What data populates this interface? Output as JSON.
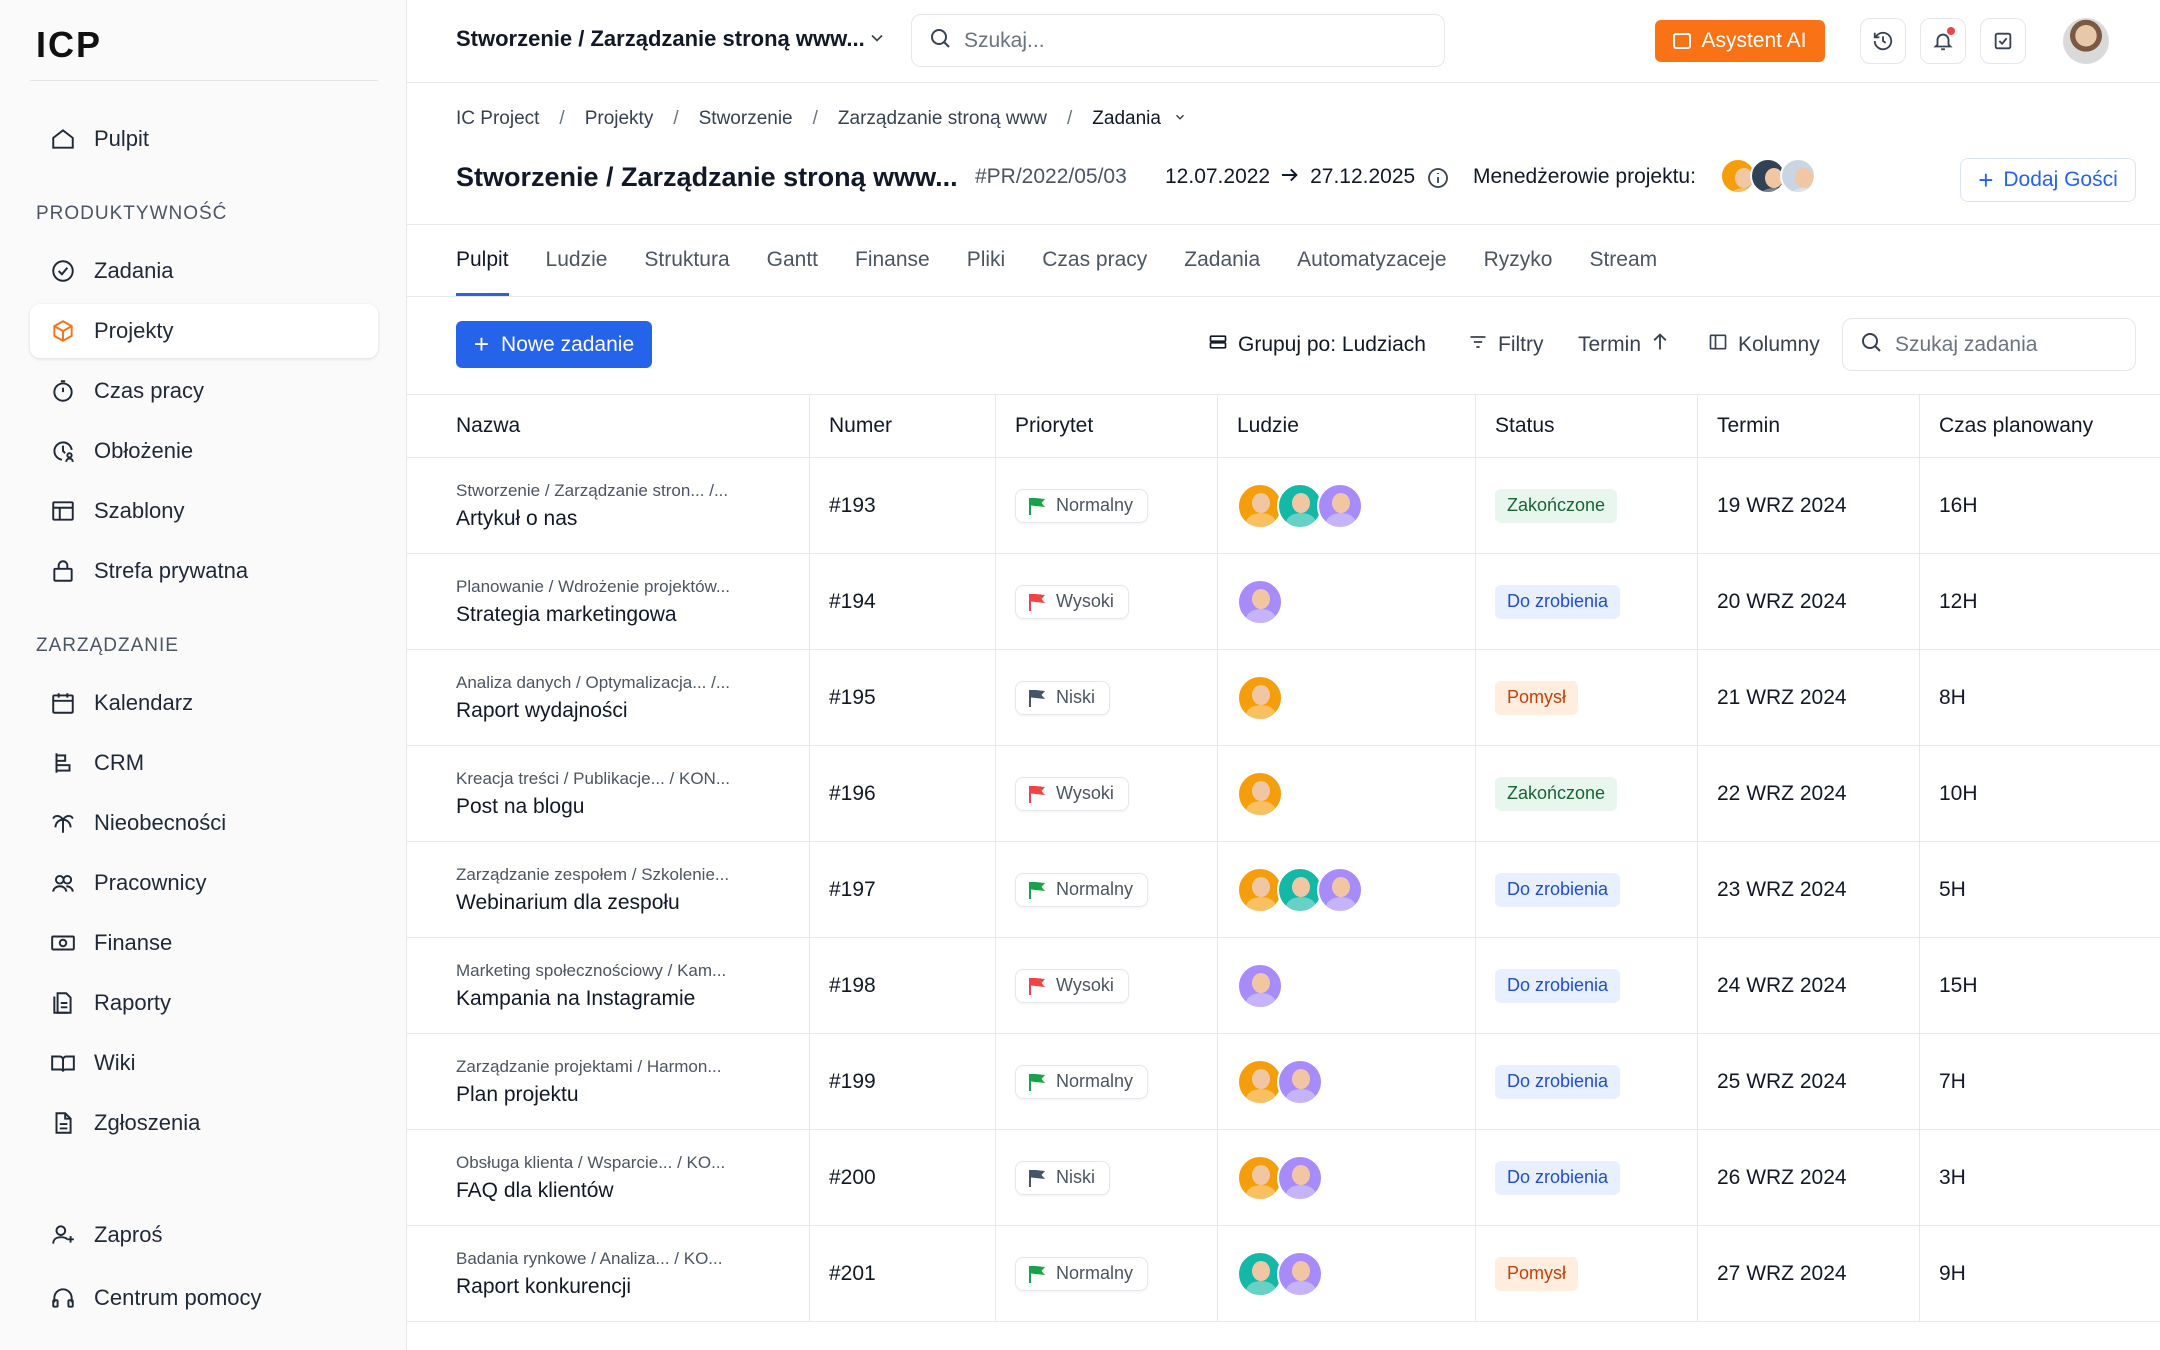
{
  "app": {
    "logo": "ICP"
  },
  "sidebar": {
    "top": [
      {
        "label": "Pulpit",
        "icon": "home-icon"
      }
    ],
    "sections": [
      {
        "title": "PRODUKTYWNOŚĆ",
        "items": [
          {
            "label": "Zadania",
            "icon": "check-circle-icon"
          },
          {
            "label": "Projekty",
            "icon": "cube-icon",
            "active": true
          },
          {
            "label": "Czas pracy",
            "icon": "stopwatch-icon"
          },
          {
            "label": "Obłożenie",
            "icon": "clock-user-icon"
          },
          {
            "label": "Szablony",
            "icon": "template-icon"
          },
          {
            "label": "Strefa prywatna",
            "icon": "lock-icon"
          }
        ]
      },
      {
        "title": "ZARZĄDZANIE",
        "items": [
          {
            "label": "Kalendarz",
            "icon": "calendar-icon"
          },
          {
            "label": "CRM",
            "icon": "crm-icon"
          },
          {
            "label": "Nieobecności",
            "icon": "palm-icon"
          },
          {
            "label": "Pracownicy",
            "icon": "users-icon"
          },
          {
            "label": "Finanse",
            "icon": "money-icon"
          },
          {
            "label": "Raporty",
            "icon": "report-icon"
          },
          {
            "label": "Wiki",
            "icon": "book-icon"
          },
          {
            "label": "Zgłoszenia",
            "icon": "document-icon"
          }
        ]
      }
    ],
    "bottom": [
      {
        "label": "Zaproś",
        "icon": "user-plus-icon"
      },
      {
        "label": "Centrum pomocy",
        "icon": "headphones-icon"
      }
    ]
  },
  "topbar": {
    "project_select": "Stworzenie / Zarządzanie stroną www...",
    "search_placeholder": "Szukaj...",
    "ai_button": "Asystent AI"
  },
  "breadcrumb": [
    "IC Project",
    "Projekty",
    "Stworzenie",
    "Zarządzanie stroną www",
    "Zadania"
  ],
  "project": {
    "title": "Stworzenie / Zarządzanie stroną www...",
    "code": "#PR/2022/05/03",
    "start": "12.07.2022",
    "end": "27.12.2025",
    "managers_label": "Menedżerowie projektu:",
    "add_guests": "Dodaj Gości"
  },
  "tabs": [
    "Pulpit",
    "Ludzie",
    "Struktura",
    "Gantt",
    "Finanse",
    "Pliki",
    "Czas pracy",
    "Zadania",
    "Automatyzaceje",
    "Ryzyko",
    "Stream"
  ],
  "toolbar": {
    "new_task": "Nowe zadanie",
    "group_by": "Grupuj po: Ludziach",
    "filters": "Filtry",
    "sort": "Termin",
    "columns": "Kolumny",
    "task_search_placeholder": "Szukaj zadania"
  },
  "table": {
    "headers": [
      "Nazwa",
      "Numer",
      "Priorytet",
      "Ludzie",
      "Status",
      "Termin",
      "Czas planowany"
    ],
    "rows": [
      {
        "path": "Stworzenie / Zarządzanie stron... /...",
        "name": "Artykuł o nas",
        "number": "#193",
        "priority": "Normalny",
        "people": [
          "orange",
          "teal",
          "purple"
        ],
        "status": "Zakończone",
        "due": "19 WRZ 2024",
        "planned": "16H"
      },
      {
        "path": "Planowanie / Wdrożenie projektów...",
        "name": "Strategia marketingowa",
        "number": "#194",
        "priority": "Wysoki",
        "people": [
          "purple"
        ],
        "status": "Do zrobienia",
        "due": "20 WRZ 2024",
        "planned": "12H"
      },
      {
        "path": "Analiza danych / Optymalizacja... /...",
        "name": "Raport wydajności",
        "number": "#195",
        "priority": "Niski",
        "people": [
          "orange"
        ],
        "status": "Pomysł",
        "due": "21 WRZ 2024",
        "planned": "8H"
      },
      {
        "path": "Kreacja treści / Publikacje... / KON...",
        "name": "Post na blogu",
        "number": "#196",
        "priority": "Wysoki",
        "people": [
          "orange"
        ],
        "status": "Zakończone",
        "due": "22 WRZ 2024",
        "planned": "10H"
      },
      {
        "path": "Zarządzanie zespołem / Szkolenie...",
        "name": "Webinarium dla zespołu",
        "number": "#197",
        "priority": "Normalny",
        "people": [
          "orange",
          "teal",
          "purple"
        ],
        "status": "Do zrobienia",
        "due": "23 WRZ 2024",
        "planned": "5H"
      },
      {
        "path": "Marketing społecznościowy / Kam...",
        "name": "Kampania na Instagramie",
        "number": "#198",
        "priority": "Wysoki",
        "people": [
          "purple"
        ],
        "status": "Do zrobienia",
        "due": "24 WRZ 2024",
        "planned": "15H"
      },
      {
        "path": "Zarządzanie projektami / Harmon...",
        "name": "Plan projektu",
        "number": "#199",
        "priority": "Normalny",
        "people": [
          "orange",
          "purple"
        ],
        "status": "Do zrobienia",
        "due": "25 WRZ 2024",
        "planned": "7H"
      },
      {
        "path": "Obsługa klienta / Wsparcie... / KO...",
        "name": "FAQ dla klientów",
        "number": "#200",
        "priority": "Niski",
        "people": [
          "orange",
          "purple"
        ],
        "status": "Do zrobienia",
        "due": "26 WRZ 2024",
        "planned": "3H"
      },
      {
        "path": "Badania rynkowe / Analiza... / KO...",
        "name": "Raport konkurencji",
        "number": "#201",
        "priority": "Normalny",
        "people": [
          "teal",
          "purple"
        ],
        "status": "Pomysł",
        "due": "27 WRZ 2024",
        "planned": "9H"
      }
    ]
  },
  "colors": {
    "accent": "#2563eb",
    "ai": "#f97316",
    "priority": {
      "Normalny": "#16a34a",
      "Wysoki": "#ef4444",
      "Niski": "#475569"
    },
    "status": {
      "Zakończone": "done",
      "Do zrobienia": "todo",
      "Pomysł": "idea"
    }
  }
}
